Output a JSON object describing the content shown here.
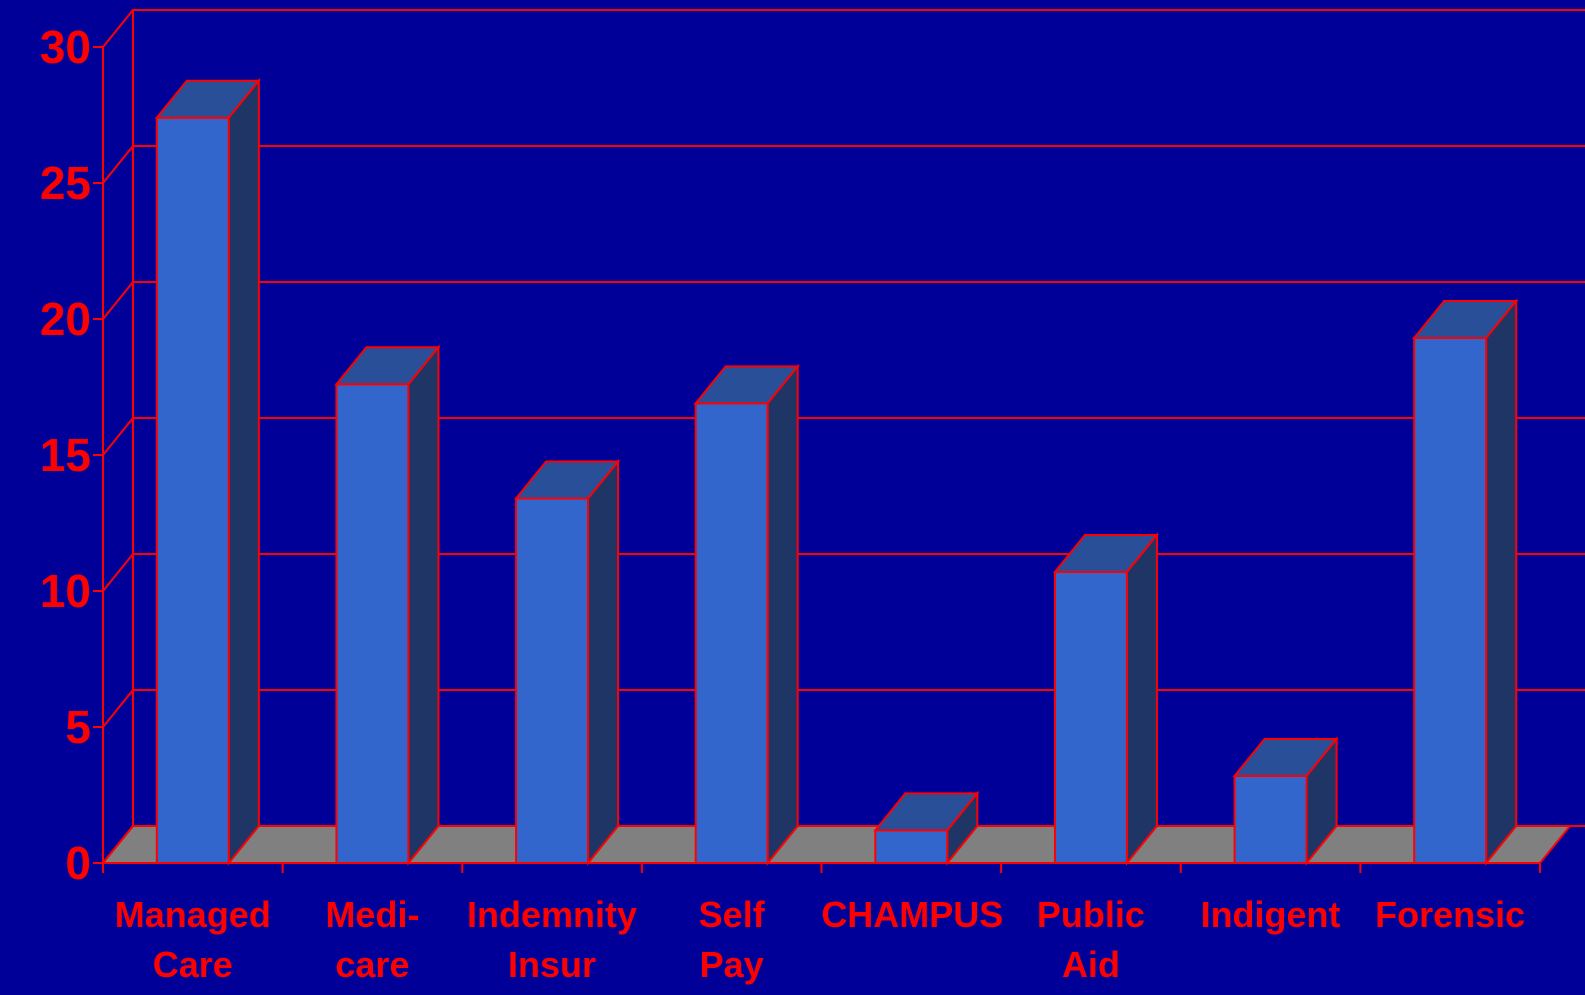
{
  "chart_data": {
    "type": "bar3d",
    "categories": [
      "Managed\nCare",
      "Medi-\ncare",
      "Indemnity\nInsur",
      "Self\nPay",
      "CHAMPUS",
      "Public\nAid",
      "Indigent",
      "Forensic"
    ],
    "values": [
      27.4,
      17.6,
      13.4,
      16.9,
      1.2,
      10.7,
      3.2,
      19.3
    ],
    "color": "#3366cc",
    "ylim": [
      0,
      30
    ],
    "yticks": [
      0,
      5,
      10,
      15,
      20,
      25,
      30
    ],
    "grid": true
  }
}
